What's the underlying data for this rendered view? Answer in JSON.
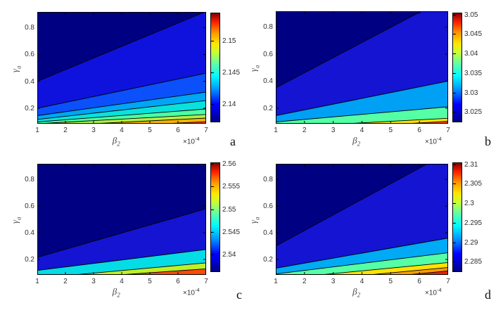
{
  "figure": {
    "background": "#ffffff"
  },
  "axes": {
    "xlabel": {
      "base": "β",
      "sub": "2"
    },
    "ylabel": {
      "base": "γ",
      "sub": "a"
    },
    "x_multiplier": {
      "base": "×10",
      "exp": "-4"
    },
    "x_ticks": [
      "1",
      "2",
      "3",
      "4",
      "5",
      "6",
      "7"
    ],
    "y_ticks": [
      "0.2",
      "0.4",
      "0.6",
      "0.8"
    ],
    "x_tick_values": [
      1,
      2,
      3,
      4,
      5,
      6,
      7
    ],
    "y_tick_values": [
      0.2,
      0.4,
      0.6,
      0.8
    ],
    "x_data_range": [
      1,
      7
    ],
    "y_data_range": [
      0.085,
      0.916
    ]
  },
  "colormap_stops": [
    {
      "p": 0,
      "c": "#000087"
    },
    {
      "p": 8,
      "c": "#0000c8"
    },
    {
      "p": 16,
      "c": "#0000ff"
    },
    {
      "p": 30,
      "c": "#0096ff"
    },
    {
      "p": 42,
      "c": "#00faff"
    },
    {
      "p": 54,
      "c": "#64ffa0"
    },
    {
      "p": 64,
      "c": "#c8ff32"
    },
    {
      "p": 72,
      "c": "#ffe600"
    },
    {
      "p": 82,
      "c": "#ff9600"
    },
    {
      "p": 92,
      "c": "#ff1e00"
    },
    {
      "p": 100,
      "c": "#820000"
    }
  ],
  "chart_data": [
    {
      "subplot": "a",
      "type": "heatmap",
      "render": "filled-contour",
      "title": "",
      "xlabel": "β_2",
      "xlabel_multiplier": "×10^-4",
      "ylabel": "γ_a",
      "x_range": [
        0.0001,
        0.0007
      ],
      "y_range": [
        0.1,
        0.9
      ],
      "x_ticks": [
        1,
        2,
        3,
        4,
        5,
        6,
        7
      ],
      "y_ticks": [
        0.2,
        0.4,
        0.6,
        0.8
      ],
      "colorbar_ticks": [
        2.14,
        2.145,
        2.15
      ],
      "colorbar_tick_labels": [
        "2.14",
        "2.145",
        "2.15"
      ],
      "value_range": [
        2.1373,
        2.1545
      ],
      "trend": "value increases toward high β_2 and low γ_a; maximum at bottom-right corner",
      "contour_lines": [
        {
          "level": 2.1375,
          "y_at_x1": 0.4,
          "y_at_x7": 0.92
        },
        {
          "level": 2.14,
          "y_at_x1": 0.2,
          "y_at_x7": 0.46
        },
        {
          "level": 2.1425,
          "y_at_x1": 0.145,
          "y_at_x7": 0.32
        },
        {
          "level": 2.145,
          "y_at_x1": 0.117,
          "y_at_x7": 0.257
        },
        {
          "level": 2.1475,
          "y_at_x1": 0.098,
          "y_at_x7": 0.195
        },
        {
          "level": 2.15,
          "y_at_x1": 0.085,
          "y_at_x7": 0.154
        },
        {
          "level": 2.1525,
          "y_at_x1": 0.065,
          "y_at_x7": 0.127
        },
        {
          "level": 2.155,
          "y_at_x1": 0.04,
          "y_at_x7": 0.1
        }
      ],
      "band_colors": [
        "#000083",
        "#0f12dc",
        "#0b50fa",
        "#00a5f5",
        "#0ae1dc",
        "#4bffa5",
        "#aff046",
        "#ffb400",
        "#ff4605"
      ]
    },
    {
      "subplot": "b",
      "type": "heatmap",
      "render": "filled-contour",
      "title": "",
      "xlabel": "β_2",
      "xlabel_multiplier": "×10^-4",
      "ylabel": "γ_a",
      "x_range": [
        0.0001,
        0.0007
      ],
      "y_range": [
        0.1,
        0.9
      ],
      "x_ticks": [
        1,
        2,
        3,
        4,
        5,
        6,
        7
      ],
      "y_ticks": [
        0.2,
        0.4,
        0.6,
        0.8
      ],
      "colorbar_ticks": [
        3.025,
        3.03,
        3.035,
        3.04,
        3.045,
        3.05
      ],
      "colorbar_tick_labels": [
        "3.025",
        "3.03",
        "3.035",
        "3.04",
        "3.045",
        "3.05"
      ],
      "value_range": [
        3.0227,
        3.0505
      ],
      "trend": "value increases toward high β_2 and low γ_a; maximum at bottom-right corner",
      "contour_lines": [
        {
          "level": 3.025,
          "y_at_x1": 0.35,
          "y_at_x7": 1.02
        },
        {
          "level": 3.03,
          "y_at_x1": 0.144,
          "y_at_x7": 0.4
        },
        {
          "level": 3.035,
          "y_at_x1": 0.098,
          "y_at_x7": 0.21
        },
        {
          "level": 3.04,
          "y_at_x1": 0.058,
          "y_at_x7": 0.125
        },
        {
          "level": 3.045,
          "y_at_x1": 0.03,
          "y_at_x7": 0.103
        },
        {
          "level": 3.05,
          "y_at_x1": 0.005,
          "y_at_x7": 0.09
        }
      ],
      "band_colors": [
        "#000083",
        "#1414d2",
        "#00a0f5",
        "#55ffa5",
        "#ffe205",
        "#ff4a05",
        "#b40000"
      ]
    },
    {
      "subplot": "c",
      "type": "heatmap",
      "render": "filled-contour",
      "title": "",
      "xlabel": "β_2",
      "xlabel_multiplier": "×10^-4",
      "ylabel": "γ_a",
      "x_range": [
        0.0001,
        0.0007
      ],
      "y_range": [
        0.1,
        0.9
      ],
      "x_ticks": [
        1,
        2,
        3,
        4,
        5,
        6,
        7
      ],
      "y_ticks": [
        0.2,
        0.4,
        0.6,
        0.8
      ],
      "colorbar_ticks": [
        2.54,
        2.545,
        2.55,
        2.555,
        2.56
      ],
      "colorbar_tick_labels": [
        "2.54",
        "2.545",
        "2.55",
        "2.555",
        "2.56"
      ],
      "value_range": [
        2.5365,
        2.5603
      ],
      "trend": "value increases toward high β_2 and low γ_a; maximum at bottom-right corner",
      "contour_lines": [
        {
          "level": 2.54,
          "y_at_x1": 0.216,
          "y_at_x7": 0.58
        },
        {
          "level": 2.545,
          "y_at_x1": 0.118,
          "y_at_x7": 0.275
        },
        {
          "level": 2.55,
          "y_at_x1": 0.06,
          "y_at_x7": 0.175
        },
        {
          "level": 2.555,
          "y_at_x1": 0.042,
          "y_at_x7": 0.13
        }
      ],
      "band_colors": [
        "#000083",
        "#1414d2",
        "#05dce6",
        "#bef028",
        "#ff4a05"
      ]
    },
    {
      "subplot": "d",
      "type": "heatmap",
      "render": "filled-contour",
      "title": "",
      "xlabel": "β_2",
      "xlabel_multiplier": "×10^-4",
      "ylabel": "γ_a",
      "x_range": [
        0.0001,
        0.0007
      ],
      "y_range": [
        0.1,
        0.9
      ],
      "x_ticks": [
        1,
        2,
        3,
        4,
        5,
        6,
        7
      ],
      "y_ticks": [
        0.2,
        0.4,
        0.6,
        0.8
      ],
      "colorbar_ticks": [
        2.285,
        2.29,
        2.295,
        2.3,
        2.305,
        2.31
      ],
      "colorbar_tick_labels": [
        "2.285",
        "2.29",
        "2.295",
        "2.3",
        "2.305",
        "2.31"
      ],
      "value_range": [
        2.2827,
        2.3105
      ],
      "trend": "value increases toward high β_2 and low γ_a; maximum at bottom-right corner",
      "contour_lines": [
        {
          "level": 2.285,
          "y_at_x1": 0.3,
          "y_at_x7": 1.0
        },
        {
          "level": 2.29,
          "y_at_x1": 0.135,
          "y_at_x7": 0.36
        },
        {
          "level": 2.295,
          "y_at_x1": 0.092,
          "y_at_x7": 0.25
        },
        {
          "level": 2.3,
          "y_at_x1": 0.053,
          "y_at_x7": 0.177
        },
        {
          "level": 2.305,
          "y_at_x1": 0.02,
          "y_at_x7": 0.14
        },
        {
          "level": 2.31,
          "y_at_x1": -0.01,
          "y_at_x7": 0.115
        }
      ],
      "band_colors": [
        "#000083",
        "#1414d2",
        "#00aaf5",
        "#55ffa5",
        "#ffe205",
        "#ff9b05",
        "#e62305"
      ]
    }
  ],
  "subplots": [
    {
      "id": "a",
      "corner_label": "a"
    },
    {
      "id": "b",
      "corner_label": "b"
    },
    {
      "id": "c",
      "corner_label": "c"
    },
    {
      "id": "d",
      "corner_label": "d"
    }
  ]
}
